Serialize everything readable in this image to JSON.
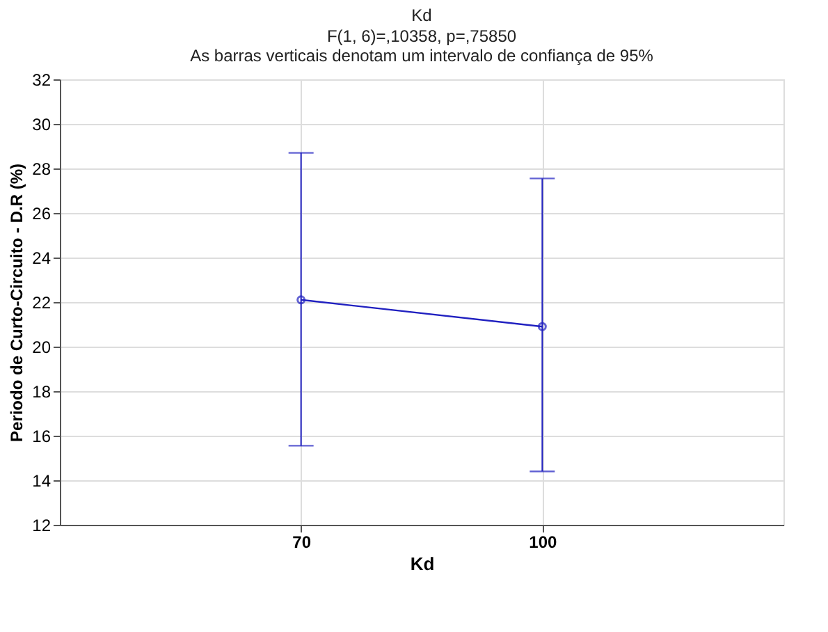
{
  "chart_data": {
    "type": "line",
    "title": "Kd",
    "subtitle": [
      "F(1, 6)=,10358, p=,75850",
      "As barras verticais denotam um intervalo de confiança de 95%"
    ],
    "xlabel": "Kd",
    "ylabel": "Periodo de Curto-Circuito - D.R (%)",
    "categories": [
      "70",
      "100"
    ],
    "series": [
      {
        "color": "#2020c0",
        "values": [
          22.1,
          20.9
        ],
        "errors": [
          [
            15.55,
            28.7
          ],
          [
            14.4,
            27.55
          ]
        ]
      }
    ],
    "ylim": [
      12,
      32
    ],
    "yticks": [
      12,
      14,
      16,
      18,
      20,
      22,
      24,
      26,
      28,
      30,
      32
    ],
    "grid": true,
    "marker": "circle",
    "line_style": "solid"
  }
}
